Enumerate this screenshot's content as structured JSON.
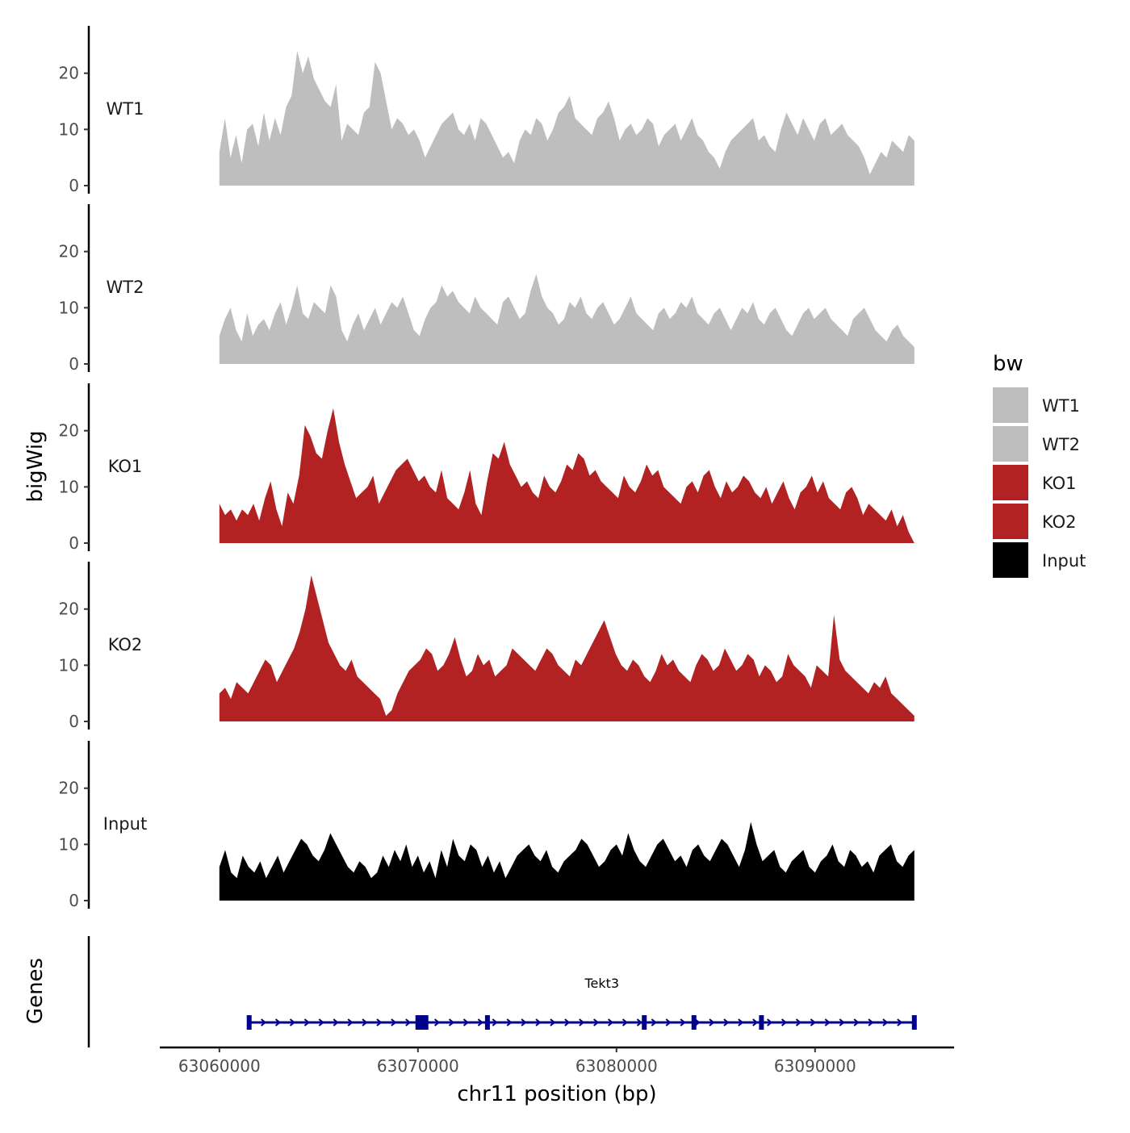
{
  "chart_data": {
    "type": "area",
    "chromosome": "chr11",
    "xlabel": "chr11 position (bp)",
    "ylabel": "bigWig",
    "xlim": [
      63057000,
      63097000
    ],
    "ylim": [
      0,
      28
    ],
    "y_ticks": [
      0,
      10,
      20
    ],
    "y_tick_labels": [
      "0",
      "10",
      "20"
    ],
    "x_ticks": [
      63060000,
      63070000,
      63080000,
      63090000
    ],
    "x_tick_labels": [
      "63060000",
      "63070000",
      "63080000",
      "63090000"
    ],
    "track_range": [
      63060000,
      63095000
    ],
    "legend": {
      "title": "bw",
      "entries": [
        {
          "label": "WT1",
          "color": "#bebebe"
        },
        {
          "label": "WT2",
          "color": "#bebebe"
        },
        {
          "label": "KO1",
          "color": "#b22222"
        },
        {
          "label": "KO2",
          "color": "#b22222"
        },
        {
          "label": "Input",
          "color": "#000000"
        }
      ]
    },
    "series": [
      {
        "name": "WT1",
        "color": "#bebebe",
        "values": [
          6,
          12,
          5,
          9,
          4,
          10,
          11,
          7,
          13,
          8,
          12,
          9,
          14,
          16,
          24,
          20,
          23,
          19,
          17,
          15,
          14,
          18,
          8,
          11,
          10,
          9,
          13,
          14,
          22,
          20,
          15,
          10,
          12,
          11,
          9,
          10,
          8,
          5,
          7,
          9,
          11,
          12,
          13,
          10,
          9,
          11,
          8,
          12,
          11,
          9,
          7,
          5,
          6,
          4,
          8,
          10,
          9,
          12,
          11,
          8,
          10,
          13,
          14,
          16,
          12,
          11,
          10,
          9,
          12,
          13,
          15,
          12,
          8,
          10,
          11,
          9,
          10,
          12,
          11,
          7,
          9,
          10,
          11,
          8,
          10,
          12,
          9,
          8,
          6,
          5,
          3,
          6,
          8,
          9,
          10,
          11,
          12,
          8,
          9,
          7,
          6,
          10,
          13,
          11,
          9,
          12,
          10,
          8,
          11,
          12,
          9,
          10,
          11,
          9,
          8,
          7,
          5,
          2,
          4,
          6,
          5,
          8,
          7,
          6,
          9,
          8
        ]
      },
      {
        "name": "WT2",
        "color": "#bebebe",
        "values": [
          5,
          8,
          10,
          6,
          4,
          9,
          5,
          7,
          8,
          6,
          9,
          11,
          7,
          10,
          14,
          9,
          8,
          11,
          10,
          9,
          14,
          12,
          6,
          4,
          7,
          9,
          6,
          8,
          10,
          7,
          9,
          11,
          10,
          12,
          9,
          6,
          5,
          8,
          10,
          11,
          14,
          12,
          13,
          11,
          10,
          9,
          12,
          10,
          9,
          8,
          7,
          11,
          12,
          10,
          8,
          9,
          13,
          16,
          12,
          10,
          9,
          7,
          8,
          11,
          10,
          12,
          9,
          8,
          10,
          11,
          9,
          7,
          8,
          10,
          12,
          9,
          8,
          7,
          6,
          9,
          10,
          8,
          9,
          11,
          10,
          12,
          9,
          8,
          7,
          9,
          10,
          8,
          6,
          8,
          10,
          9,
          11,
          8,
          7,
          9,
          10,
          8,
          6,
          5,
          7,
          9,
          10,
          8,
          9,
          10,
          8,
          7,
          6,
          5,
          8,
          9,
          10,
          8,
          6,
          5,
          4,
          6,
          7,
          5,
          4,
          3
        ]
      },
      {
        "name": "KO1",
        "color": "#b22222",
        "values": [
          7,
          5,
          6,
          4,
          6,
          5,
          7,
          4,
          8,
          11,
          6,
          3,
          9,
          7,
          12,
          21,
          19,
          16,
          15,
          20,
          24,
          18,
          14,
          11,
          8,
          9,
          10,
          12,
          7,
          9,
          11,
          13,
          14,
          15,
          13,
          11,
          12,
          10,
          9,
          13,
          8,
          7,
          6,
          9,
          13,
          7,
          5,
          11,
          16,
          15,
          18,
          14,
          12,
          10,
          11,
          9,
          8,
          12,
          10,
          9,
          11,
          14,
          13,
          16,
          15,
          12,
          13,
          11,
          10,
          9,
          8,
          12,
          10,
          9,
          11,
          14,
          12,
          13,
          10,
          9,
          8,
          7,
          10,
          11,
          9,
          12,
          13,
          10,
          8,
          11,
          9,
          10,
          12,
          11,
          9,
          8,
          10,
          7,
          9,
          11,
          8,
          6,
          9,
          10,
          12,
          9,
          11,
          8,
          7,
          6,
          9,
          10,
          8,
          5,
          7,
          6,
          5,
          4,
          6,
          3,
          5,
          2,
          0
        ]
      },
      {
        "name": "KO2",
        "color": "#b22222",
        "values": [
          5,
          6,
          4,
          7,
          6,
          5,
          7,
          9,
          11,
          10,
          7,
          9,
          11,
          13,
          16,
          20,
          26,
          22,
          18,
          14,
          12,
          10,
          9,
          11,
          8,
          7,
          6,
          5,
          4,
          1,
          2,
          5,
          7,
          9,
          10,
          11,
          13,
          12,
          9,
          10,
          12,
          15,
          11,
          8,
          9,
          12,
          10,
          11,
          8,
          9,
          10,
          13,
          12,
          11,
          10,
          9,
          11,
          13,
          12,
          10,
          9,
          8,
          11,
          10,
          12,
          14,
          16,
          18,
          15,
          12,
          10,
          9,
          11,
          10,
          8,
          7,
          9,
          12,
          10,
          11,
          9,
          8,
          7,
          10,
          12,
          11,
          9,
          10,
          13,
          11,
          9,
          10,
          12,
          11,
          8,
          10,
          9,
          7,
          8,
          12,
          10,
          9,
          8,
          6,
          10,
          9,
          8,
          19,
          11,
          9,
          8,
          7,
          6,
          5,
          7,
          6,
          8,
          5,
          4,
          3,
          2,
          1
        ]
      },
      {
        "name": "Input",
        "color": "#000000",
        "values": [
          6,
          9,
          5,
          4,
          8,
          6,
          5,
          7,
          4,
          6,
          8,
          5,
          7,
          9,
          11,
          10,
          8,
          7,
          9,
          12,
          10,
          8,
          6,
          5,
          7,
          6,
          4,
          5,
          8,
          6,
          9,
          7,
          10,
          6,
          8,
          5,
          7,
          4,
          9,
          6,
          11,
          8,
          7,
          10,
          9,
          6,
          8,
          5,
          7,
          4,
          6,
          8,
          9,
          10,
          8,
          7,
          9,
          6,
          5,
          7,
          8,
          9,
          11,
          10,
          8,
          6,
          7,
          9,
          10,
          8,
          12,
          9,
          7,
          6,
          8,
          10,
          11,
          9,
          7,
          8,
          6,
          9,
          10,
          8,
          7,
          9,
          11,
          10,
          8,
          6,
          9,
          14,
          10,
          7,
          8,
          9,
          6,
          5,
          7,
          8,
          9,
          6,
          5,
          7,
          8,
          10,
          7,
          6,
          9,
          8,
          6,
          7,
          5,
          8,
          9,
          10,
          7,
          6,
          8,
          9
        ]
      }
    ],
    "genes_track": {
      "title": "Genes",
      "gene_name": "Tekt3",
      "gene_color": "#00008b",
      "strand": "+",
      "start": 63061500,
      "end": 63095000,
      "exon_positions": [
        63061500,
        63070200,
        63073500,
        63081400,
        63083900,
        63087300,
        63095000
      ]
    }
  }
}
